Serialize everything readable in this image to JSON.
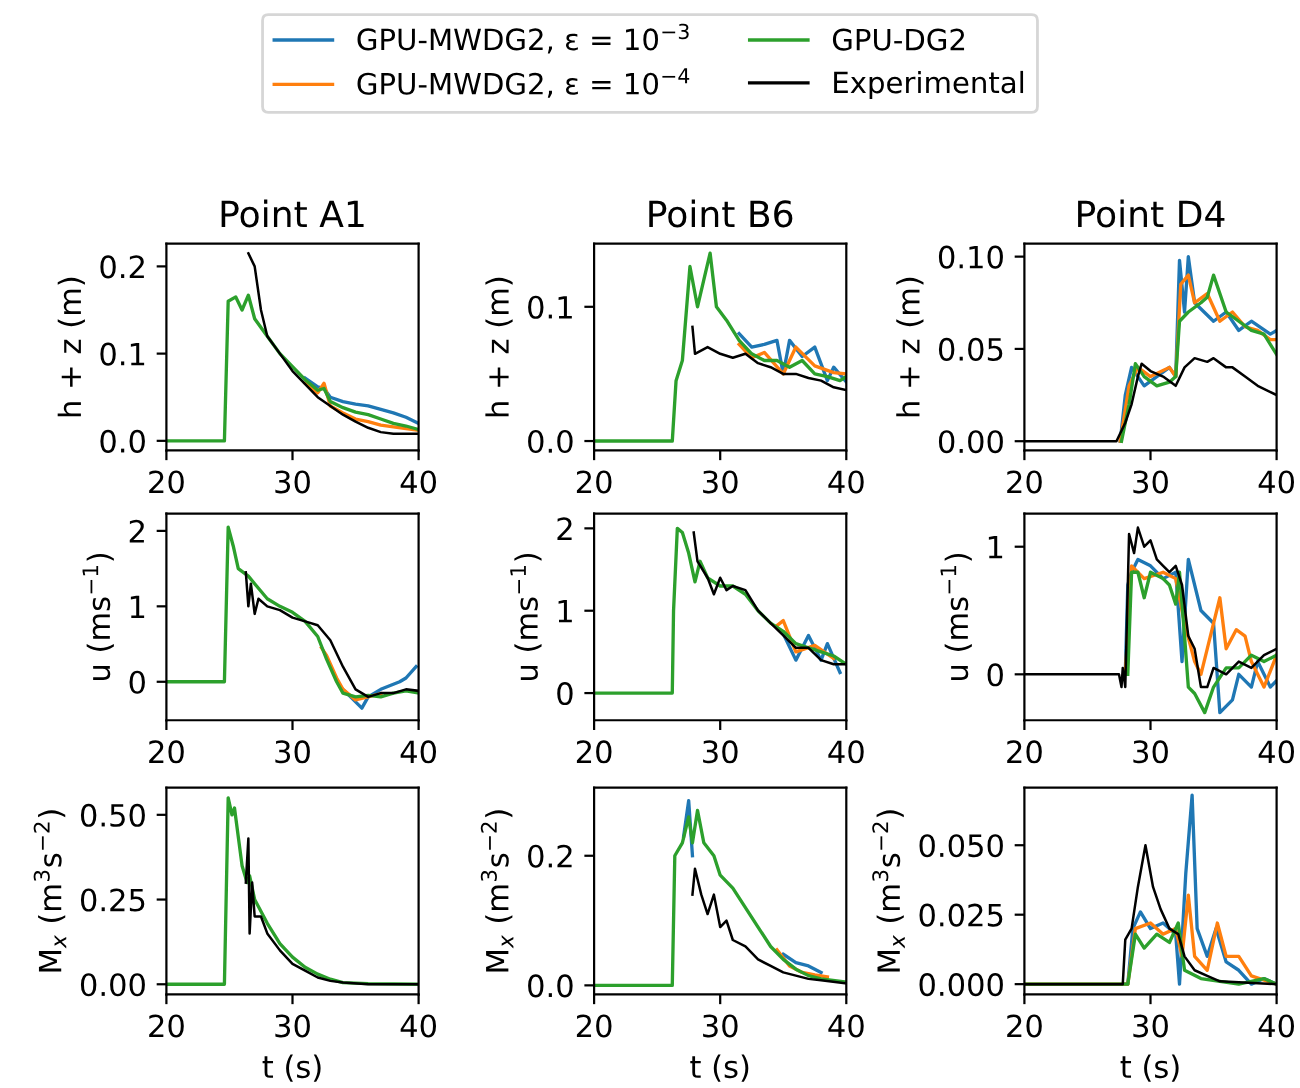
{
  "chart_data": [
    {
      "type": "line",
      "title": "Point A1",
      "ylabel": "h + z (m)",
      "legend": "top",
      "xlim": [
        20,
        40
      ],
      "xticks": [
        20,
        30,
        40
      ],
      "ylim": [
        -0.011,
        0.226
      ],
      "yticks": [
        {
          "value": 0,
          "label": "0.0"
        },
        0.1,
        0.2
      ],
      "series": [
        {
          "name": "GPU-MWDG2, ε = 10$^{−3}$",
          "color": "#1f77b4",
          "x": [
            31,
            32,
            32.5,
            33,
            34,
            35,
            36,
            37,
            38,
            39,
            40
          ],
          "values": [
            0.072,
            0.062,
            0.06,
            0.05,
            0.045,
            0.042,
            0.04,
            0.036,
            0.032,
            0.027,
            0.02
          ]
        },
        {
          "name": "GPU-MWDG2, ε = 10$^{−4}$",
          "color": "#ff7f0e",
          "x": [
            31,
            32,
            32.5,
            33,
            34,
            35,
            36,
            37,
            38,
            39,
            40
          ],
          "values": [
            0.066,
            0.055,
            0.066,
            0.04,
            0.032,
            0.025,
            0.022,
            0.018,
            0.016,
            0.014,
            0.012
          ]
        },
        {
          "name": "GPU-DG2",
          "color": "#2ca02c",
          "x": [
            20,
            24.6,
            24.9,
            25.5,
            26,
            26.5,
            27,
            28,
            29,
            30,
            31,
            32,
            32.5,
            33,
            34,
            35,
            36,
            37,
            38,
            39,
            40
          ],
          "values": [
            0,
            0,
            0.16,
            0.165,
            0.15,
            0.167,
            0.14,
            0.12,
            0.1,
            0.085,
            0.07,
            0.058,
            0.06,
            0.045,
            0.038,
            0.033,
            0.03,
            0.025,
            0.02,
            0.017,
            0.013
          ]
        },
        {
          "name": "Experimental",
          "color": "#000000",
          "x": [
            26.5,
            27,
            27.5,
            28,
            29,
            30,
            31,
            32,
            33,
            34,
            35,
            36,
            37,
            38,
            40
          ],
          "values": [
            0.215,
            0.2,
            0.15,
            0.12,
            0.1,
            0.08,
            0.065,
            0.05,
            0.04,
            0.03,
            0.022,
            0.015,
            0.01,
            0.008,
            0.008
          ]
        }
      ]
    },
    {
      "type": "line",
      "title": "Point B6",
      "ylabel": "h + z (m)",
      "xlim": [
        20,
        40
      ],
      "xticks": [
        20,
        30,
        40
      ],
      "ylim": [
        -0.007,
        0.147
      ],
      "yticks": [
        {
          "value": 0,
          "label": "0.0"
        },
        0.1
      ],
      "series": [
        {
          "name": "GPU-MWDG2, ε = 10$^{−3}$",
          "color": "#1f77b4",
          "x": [
            31.5,
            32.5,
            33.5,
            34.5,
            35,
            35.5,
            36.5,
            37.5,
            38.5,
            39,
            40
          ],
          "values": [
            0.08,
            0.07,
            0.072,
            0.075,
            0.05,
            0.075,
            0.063,
            0.07,
            0.045,
            0.055,
            0.044
          ]
        },
        {
          "name": "GPU-MWDG2, ε = 10$^{−4}$",
          "color": "#ff7f0e",
          "x": [
            31.5,
            32.5,
            33.5,
            35,
            36,
            37.5,
            39,
            40
          ],
          "values": [
            0.072,
            0.062,
            0.066,
            0.05,
            0.07,
            0.056,
            0.051,
            0.05
          ]
        },
        {
          "name": "GPU-DG2",
          "color": "#2ca02c",
          "x": [
            20,
            26.2,
            26.5,
            27,
            27.6,
            28.2,
            28.7,
            29.2,
            29.7,
            30.5,
            31.5,
            32.5,
            33.5,
            34.5,
            35.5,
            36.5,
            37.5,
            38.5,
            39.5,
            40
          ],
          "values": [
            0,
            0,
            0.045,
            0.06,
            0.13,
            0.1,
            0.12,
            0.14,
            0.1,
            0.09,
            0.075,
            0.065,
            0.06,
            0.06,
            0.055,
            0.06,
            0.05,
            0.048,
            0.045,
            0.048
          ]
        },
        {
          "name": "Experimental",
          "color": "#000000",
          "x": [
            27.8,
            28,
            29,
            30,
            31,
            32,
            33,
            34,
            35,
            36,
            37,
            38,
            39,
            40
          ],
          "values": [
            0.085,
            0.065,
            0.07,
            0.065,
            0.062,
            0.065,
            0.058,
            0.055,
            0.05,
            0.05,
            0.047,
            0.045,
            0.04,
            0.038
          ]
        }
      ]
    },
    {
      "type": "line",
      "title": "Point D4",
      "ylabel": "h + z (m)",
      "xlim": [
        20,
        40
      ],
      "xticks": [
        20,
        30,
        40
      ],
      "ylim": [
        -0.005,
        0.107
      ],
      "yticks": [
        {
          "value": 0.0,
          "label": "0.00"
        },
        0.05,
        {
          "value": 0.1,
          "label": "0.10"
        }
      ],
      "series": [
        {
          "name": "GPU-MWDG2, ε = 10$^{−3}$",
          "color": "#1f77b4",
          "x": [
            27.6,
            28,
            28.5,
            29.5,
            30.5,
            31.5,
            32,
            32.3,
            32.7,
            33,
            33.5,
            35,
            36,
            37,
            38,
            39.5,
            40
          ],
          "values": [
            0,
            0.025,
            0.04,
            0.03,
            0.035,
            0.04,
            0.035,
            0.098,
            0.07,
            0.1,
            0.075,
            0.065,
            0.07,
            0.06,
            0.065,
            0.058,
            0.06
          ]
        },
        {
          "name": "GPU-MWDG2, ε = 10$^{−4}$",
          "color": "#ff7f0e",
          "x": [
            27.6,
            28.3,
            29,
            30,
            31.5,
            32,
            32.4,
            33,
            33.5,
            34.5,
            35.5,
            36.5,
            37.5,
            38.5,
            39.5,
            40
          ],
          "values": [
            0,
            0.03,
            0.04,
            0.035,
            0.04,
            0.035,
            0.085,
            0.09,
            0.075,
            0.08,
            0.065,
            0.07,
            0.062,
            0.06,
            0.055,
            0.055
          ]
        },
        {
          "name": "GPU-DG2",
          "color": "#2ca02c",
          "x": [
            27.7,
            28.3,
            28.8,
            29.5,
            30.5,
            31.5,
            32,
            32.3,
            33,
            34,
            34.5,
            35,
            36,
            37,
            38,
            39,
            40
          ],
          "values": [
            0,
            0.02,
            0.042,
            0.035,
            0.03,
            0.032,
            0.035,
            0.065,
            0.07,
            0.075,
            0.078,
            0.09,
            0.07,
            0.065,
            0.06,
            0.058,
            0.047
          ]
        },
        {
          "name": "Experimental",
          "color": "#000000",
          "x": [
            20,
            27.3,
            28,
            28.5,
            29,
            29.3,
            30,
            31,
            32,
            32.7,
            33.5,
            34.5,
            35,
            36,
            36.5,
            37.5,
            38.5,
            40
          ],
          "values": [
            0,
            0,
            0.01,
            0.02,
            0.035,
            0.042,
            0.038,
            0.035,
            0.03,
            0.04,
            0.045,
            0.043,
            0.045,
            0.04,
            0.04,
            0.035,
            0.03,
            0.025
          ]
        }
      ]
    },
    {
      "type": "line",
      "ylabel": "u (ms$^{−1}$)",
      "xlim": [
        20,
        40
      ],
      "xticks": [
        20,
        30,
        40
      ],
      "ylim": [
        -0.51,
        2.23
      ],
      "yticks": [
        0,
        1,
        2
      ],
      "series": [
        {
          "name": "GPU-MWDG2, ε = 10$^{−3}$",
          "color": "#1f77b4",
          "x": [
            34,
            35.5,
            36,
            37,
            38.5,
            39,
            39.8
          ],
          "values": [
            -0.1,
            -0.35,
            -0.2,
            -0.1,
            0.0,
            0.05,
            0.2
          ]
        },
        {
          "name": "GPU-MWDG2, ε = 10$^{−4}$",
          "color": "#ff7f0e",
          "x": [
            32.3,
            32.7,
            33.5,
            34,
            35,
            37
          ],
          "values": [
            0.45,
            0.35,
            0.05,
            -0.1,
            -0.24,
            -0.16
          ]
        },
        {
          "name": "GPU-DG2",
          "color": "#2ca02c",
          "x": [
            20,
            24.6,
            24.9,
            25.3,
            25.7,
            26.5,
            27,
            28,
            29,
            30,
            31,
            32,
            32.7,
            33.5,
            34,
            35,
            36,
            37,
            38,
            39,
            40
          ],
          "values": [
            0,
            0,
            2.05,
            1.8,
            1.5,
            1.4,
            1.3,
            1.1,
            1.0,
            0.92,
            0.8,
            0.6,
            0.3,
            0.0,
            -0.15,
            -0.2,
            -0.18,
            -0.2,
            -0.15,
            -0.12,
            -0.15
          ]
        },
        {
          "name": "Experimental",
          "color": "#000000",
          "x": [
            26.3,
            26.5,
            26.7,
            27,
            27.3,
            28,
            29,
            30,
            31,
            32,
            33,
            34,
            35,
            36,
            37,
            38,
            39,
            40
          ],
          "values": [
            1.45,
            1.0,
            1.3,
            0.9,
            1.1,
            1.0,
            0.95,
            0.85,
            0.8,
            0.75,
            0.55,
            0.2,
            -0.1,
            -0.2,
            -0.15,
            -0.15,
            -0.1,
            -0.12
          ]
        }
      ]
    },
    {
      "type": "line",
      "ylabel": "u (ms$^{−1}$)",
      "xlim": [
        20,
        40
      ],
      "xticks": [
        20,
        30,
        40
      ],
      "ylim": [
        -0.33,
        2.18
      ],
      "yticks": [
        0,
        1,
        2
      ],
      "series": [
        {
          "name": "GPU-MWDG2, ε = 10$^{−3}$",
          "color": "#1f77b4",
          "x": [
            35,
            36,
            37,
            38,
            38.5,
            39.5
          ],
          "values": [
            0.72,
            0.4,
            0.7,
            0.4,
            0.6,
            0.25
          ]
        },
        {
          "name": "GPU-MWDG2, ε = 10$^{−4}$",
          "color": "#ff7f0e",
          "x": [
            34.5,
            35,
            36,
            37.5,
            39
          ],
          "values": [
            0.82,
            0.88,
            0.5,
            0.58,
            0.42
          ]
        },
        {
          "name": "GPU-DG2",
          "color": "#2ca02c",
          "x": [
            20,
            26.2,
            26.3,
            26.6,
            27,
            27.5,
            28,
            28.4,
            29,
            30,
            31,
            32,
            33,
            34,
            35,
            36,
            37,
            38,
            39,
            40
          ],
          "values": [
            0,
            0,
            1.0,
            2.0,
            1.95,
            1.7,
            1.35,
            1.6,
            1.4,
            1.3,
            1.3,
            1.2,
            1.0,
            0.85,
            0.75,
            0.6,
            0.55,
            0.5,
            0.45,
            0.35
          ]
        },
        {
          "name": "Experimental",
          "color": "#000000",
          "x": [
            27.9,
            28.2,
            29,
            29.5,
            30,
            30.5,
            31,
            32,
            33,
            34,
            35,
            36,
            37,
            38,
            39,
            40
          ],
          "values": [
            1.95,
            1.6,
            1.4,
            1.2,
            1.4,
            1.25,
            1.3,
            1.25,
            1.0,
            0.85,
            0.7,
            0.55,
            0.55,
            0.4,
            0.35,
            0.35
          ]
        }
      ]
    },
    {
      "type": "line",
      "ylabel": "u (ms$^{−1}$)",
      "xlim": [
        20,
        40
      ],
      "xticks": [
        20,
        30,
        40
      ],
      "ylim": [
        -0.36,
        1.26
      ],
      "yticks": [
        0,
        1
      ],
      "series": [
        {
          "name": "GPU-MWDG2, ε = 10$^{−3}$",
          "color": "#1f77b4",
          "x": [
            28,
            28.2,
            28.5,
            29,
            30,
            31,
            32,
            32.5,
            33,
            34,
            35,
            35.5,
            36.5,
            37,
            38,
            38.5,
            39.5,
            40
          ],
          "values": [
            0,
            0.7,
            0.8,
            0.9,
            0.85,
            0.75,
            0.8,
            0.1,
            0.9,
            0.5,
            0.4,
            -0.3,
            -0.2,
            0.0,
            -0.1,
            0.1,
            -0.1,
            -0.05
          ]
        },
        {
          "name": "GPU-MWDG2, ε = 10$^{−4}$",
          "color": "#ff7f0e",
          "x": [
            28,
            28.5,
            29.5,
            31,
            32,
            32.7,
            33.5,
            34,
            34.5,
            35.5,
            36,
            36.8,
            37.5,
            38,
            39,
            40
          ],
          "values": [
            0,
            0.85,
            0.75,
            0.8,
            0.75,
            0.4,
            0.1,
            0.0,
            0.2,
            0.6,
            0.2,
            0.35,
            0.3,
            0.1,
            -0.1,
            0.15
          ]
        },
        {
          "name": "GPU-DG2",
          "color": "#2ca02c",
          "x": [
            28.2,
            28.5,
            29,
            29.5,
            30,
            31,
            31.5,
            32,
            32.3,
            32.7,
            33,
            33.5,
            34.3,
            35,
            36,
            37,
            38,
            39,
            40
          ],
          "values": [
            0,
            0.8,
            0.8,
            0.6,
            0.8,
            0.75,
            0.7,
            0.55,
            0.8,
            0.3,
            -0.1,
            -0.15,
            -0.3,
            -0.1,
            0.05,
            0.05,
            0.15,
            0.1,
            0.15
          ]
        },
        {
          "name": "Experimental",
          "color": "#000000",
          "x": [
            20,
            27.5,
            27.7,
            27.8,
            28,
            28.3,
            28.7,
            29,
            29.5,
            30,
            30.5,
            31,
            31.5,
            32,
            32.5,
            33,
            33.5,
            34,
            34.5,
            35,
            36,
            37,
            38,
            39,
            40
          ],
          "values": [
            0,
            0,
            -0.1,
            0.05,
            -0.1,
            1.1,
            0.95,
            1.15,
            1.0,
            1.05,
            0.9,
            0.85,
            0.8,
            0.85,
            0.7,
            0.3,
            0.2,
            -0.1,
            -0.1,
            0.05,
            0.0,
            0.1,
            0.05,
            0.15,
            0.2
          ]
        }
      ]
    },
    {
      "type": "line",
      "ylabel": "M$_{x}$ (m$^{3}$s$^{−2}$)",
      "xlabel": "t (s)",
      "xlim": [
        20,
        40
      ],
      "xticks": [
        20,
        30,
        40
      ],
      "ylim": [
        -0.03,
        0.58
      ],
      "yticks": [
        {
          "value": 0,
          "label": "0.00"
        },
        0.25,
        {
          "value": 0.5,
          "label": "0.50"
        }
      ],
      "series": [
        {
          "name": "GPU-DG2",
          "color": "#2ca02c",
          "x": [
            20,
            24.6,
            24.9,
            25.2,
            25.4,
            26,
            26.4,
            26.6,
            27,
            28,
            29,
            30,
            31,
            32,
            33,
            34,
            36,
            40
          ],
          "values": [
            0,
            0,
            0.55,
            0.5,
            0.52,
            0.35,
            0.3,
            0.32,
            0.25,
            0.18,
            0.12,
            0.08,
            0.05,
            0.03,
            0.015,
            0.005,
            0.002,
            0
          ]
        },
        {
          "name": "Experimental",
          "color": "#000000",
          "x": [
            26.3,
            26.5,
            26.6,
            26.8,
            27,
            27.5,
            28,
            29,
            30,
            31,
            32,
            33,
            34,
            36,
            40
          ],
          "values": [
            0.3,
            0.43,
            0.15,
            0.3,
            0.2,
            0.2,
            0.15,
            0.1,
            0.06,
            0.04,
            0.02,
            0.01,
            0.005,
            0,
            0
          ]
        }
      ]
    },
    {
      "type": "line",
      "ylabel": "M$_{x}$ (m$^{3}$s$^{−2}$)",
      "xlabel": "t (s)",
      "xlim": [
        20,
        40
      ],
      "xticks": [
        20,
        30,
        40
      ],
      "ylim": [
        -0.014,
        0.305
      ],
      "yticks": [
        {
          "value": 0,
          "label": "0.0"
        },
        0.2
      ],
      "series": [
        {
          "name": "GPU-MWDG2, ε = 10$^{−3}$",
          "color": "#1f77b4",
          "x": [
            27.1,
            27.5,
            27.8,
            33,
            35,
            36,
            37,
            38
          ],
          "values": [
            0.23,
            0.285,
            0.2,
            null,
            0.048,
            0.035,
            0.03,
            0.02
          ]
        },
        {
          "name": "GPU-MWDG2, ε = 10$^{−4}$",
          "color": "#ff7f0e",
          "x": [
            34.5,
            35.5,
            36.5,
            37.5,
            38.5
          ],
          "values": [
            0.055,
            0.03,
            0.02,
            0.016,
            0.013
          ]
        },
        {
          "name": "GPU-DG2",
          "color": "#2ca02c",
          "x": [
            20,
            26.2,
            26.4,
            27,
            27.5,
            27.8,
            28.2,
            28.7,
            29.5,
            30,
            31,
            32,
            33,
            34,
            35,
            36,
            37,
            38,
            40
          ],
          "values": [
            0,
            0,
            0.2,
            0.22,
            0.26,
            0.22,
            0.27,
            0.22,
            0.2,
            0.17,
            0.15,
            0.12,
            0.09,
            0.06,
            0.04,
            0.025,
            0.015,
            0.01,
            0.005
          ]
        },
        {
          "name": "Experimental",
          "color": "#000000",
          "x": [
            27.8,
            28,
            28.5,
            29,
            29.5,
            30,
            30.5,
            31,
            32,
            33,
            34,
            35,
            36,
            37,
            38,
            40
          ],
          "values": [
            0.14,
            0.18,
            0.14,
            0.11,
            0.14,
            0.09,
            0.1,
            0.07,
            0.06,
            0.04,
            0.03,
            0.02,
            0.015,
            0.01,
            0.008,
            0.003
          ]
        }
      ]
    },
    {
      "type": "line",
      "ylabel": "M$_{x}$ (m$^{3}$s$^{−2}$)",
      "xlabel": "t (s)",
      "xlim": [
        20,
        40
      ],
      "xticks": [
        20,
        30,
        40
      ],
      "ylim": [
        -0.0037,
        0.0707
      ],
      "yticks": [
        {
          "value": 0,
          "label": "0.000"
        },
        0.025,
        {
          "value": 0.05,
          "label": "0.050"
        }
      ],
      "series": [
        {
          "name": "GPU-MWDG2, ε = 10$^{−3}$",
          "color": "#1f77b4",
          "x": [
            20,
            28.2,
            28.6,
            29.2,
            30,
            31,
            32,
            32.3,
            32.8,
            33.3,
            33.7,
            34.5,
            35.2,
            36,
            37,
            38,
            39,
            40
          ],
          "values": [
            0,
            0,
            0.02,
            0.026,
            0.02,
            0.022,
            0.018,
            0.0,
            0.04,
            0.068,
            0.02,
            0.01,
            0.02,
            0.008,
            0.005,
            0,
            0.002,
            0
          ]
        },
        {
          "name": "GPU-MWDG2, ε = 10$^{−4}$",
          "color": "#ff7f0e",
          "x": [
            20,
            28.2,
            28.8,
            30,
            31,
            32,
            32.5,
            33,
            33.5,
            34.5,
            35.3,
            36,
            37,
            38,
            40
          ],
          "values": [
            0,
            0,
            0.02,
            0.022,
            0.018,
            0.02,
            0.01,
            0.032,
            0.01,
            0.005,
            0.022,
            0.01,
            0.01,
            0.003,
            0
          ]
        },
        {
          "name": "GPU-DG2",
          "color": "#2ca02c",
          "x": [
            20,
            28.2,
            28.8,
            29.5,
            30.5,
            31.5,
            32.2,
            32.7,
            34,
            37,
            39,
            40
          ],
          "values": [
            0,
            0,
            0.018,
            0.013,
            0.018,
            0.015,
            0.022,
            0.005,
            0.002,
            0,
            0.002,
            0
          ]
        },
        {
          "name": "Experimental",
          "color": "#000000",
          "x": [
            20,
            27.8,
            28,
            28.5,
            29,
            29.6,
            30.2,
            30.8,
            31.5,
            32.2,
            32.7,
            33.5,
            34.5,
            35.5,
            40
          ],
          "values": [
            0,
            0,
            0.016,
            0.02,
            0.035,
            0.05,
            0.035,
            0.027,
            0.02,
            0.018,
            0.01,
            0.005,
            0.003,
            0.001,
            0
          ]
        }
      ]
    }
  ]
}
